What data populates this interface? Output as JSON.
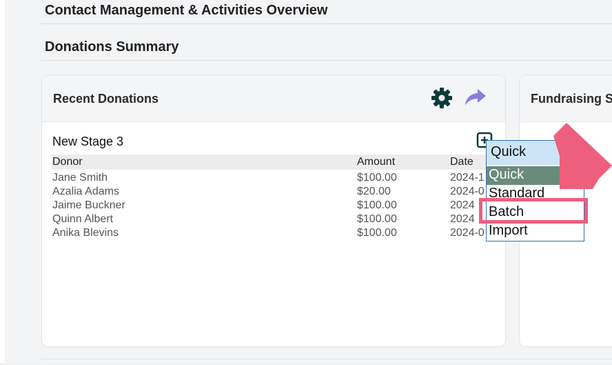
{
  "page": {
    "title": "Contact Management & Activities Overview",
    "section_title": "Donations Summary"
  },
  "recent_donations": {
    "title": "Recent Donations",
    "header_icons": [
      "gear-icon",
      "share-icon"
    ],
    "stage_title": "New Stage 3",
    "add_icon": "add-square-icon",
    "columns": {
      "donor": "Donor",
      "amount": "Amount",
      "date": "Date"
    },
    "rows": [
      {
        "donor": "Jane Smith",
        "amount": "$100.00",
        "date": "2024-1"
      },
      {
        "donor": "Azalia Adams",
        "amount": "$20.00",
        "date": "2024-0"
      },
      {
        "donor": "Jaime Buckner",
        "amount": "$100.00",
        "date": "2024"
      },
      {
        "donor": "Quinn Albert",
        "amount": "$100.00",
        "date": "2024"
      },
      {
        "donor": "Anika Blevins",
        "amount": "$100.00",
        "date": "2024-0"
      }
    ]
  },
  "fundraising": {
    "title": "Fundraising So"
  },
  "dropdown": {
    "selected": "Quick",
    "options": [
      "Quick",
      "Standard",
      "Batch",
      "Import"
    ],
    "highlighted_option": "Quick",
    "annotated_option": "Batch"
  },
  "colors": {
    "accent_arrow": "#ee5e7d",
    "gear": "#0b3b3b",
    "share": "#8a7de0",
    "option_highlight": "#6a8a7c",
    "selected_bg": "#cde4f7"
  }
}
